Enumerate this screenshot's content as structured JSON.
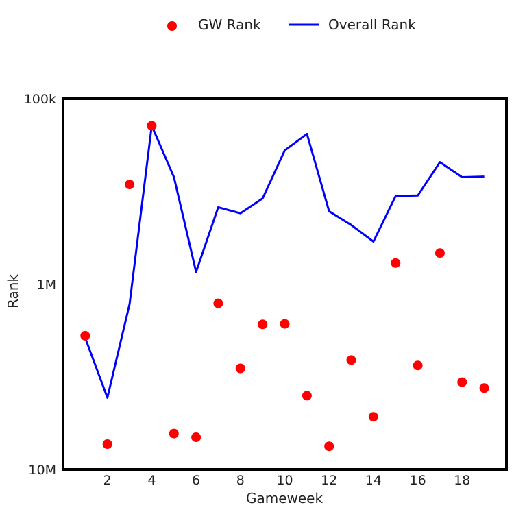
{
  "chart_data": {
    "type": "scatter+line",
    "xlabel": "Gameweek",
    "ylabel": "Rank",
    "y_scale": "log",
    "y_inverted": true,
    "xlim": [
      0,
      20
    ],
    "ylim": [
      10000000,
      100000
    ],
    "x_ticks": [
      2,
      4,
      6,
      8,
      10,
      12,
      14,
      16,
      18
    ],
    "y_ticks": [
      {
        "value": 100000,
        "label": "100k"
      },
      {
        "value": 1000000,
        "label": "1M"
      },
      {
        "value": 10000000,
        "label": "10M"
      }
    ],
    "grid": false,
    "legend_position": "top-center",
    "series": [
      {
        "name": "GW Rank",
        "kind": "scatter",
        "color": "#ff0000",
        "x": [
          1,
          2,
          3,
          4,
          5,
          6,
          7,
          8,
          9,
          10,
          11,
          12,
          13,
          14,
          15,
          16,
          17,
          18,
          19
        ],
        "values": [
          1900000,
          7300000,
          290000,
          140000,
          6400000,
          6700000,
          1270000,
          2850000,
          1650000,
          1640000,
          4000000,
          7500000,
          2570000,
          5200000,
          770000,
          2750000,
          680000,
          3380000,
          3640000
        ]
      },
      {
        "name": "Overall Rank",
        "kind": "line",
        "color": "#0000ff",
        "x": [
          1,
          2,
          3,
          4,
          5,
          6,
          7,
          8,
          9,
          10,
          11,
          12,
          13,
          14,
          15,
          16,
          17,
          18,
          19
        ],
        "values": [
          1950000,
          4100000,
          1280000,
          140000,
          265000,
          860000,
          385000,
          415000,
          345000,
          190000,
          155000,
          405000,
          480000,
          590000,
          335000,
          333000,
          220000,
          265000,
          263000
        ]
      }
    ]
  }
}
